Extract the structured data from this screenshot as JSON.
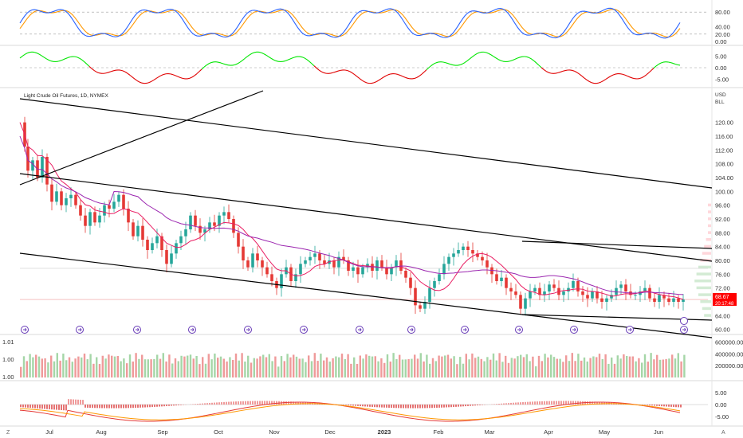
{
  "chart_data": {
    "type": "candlestick",
    "title": "Light Crude Oil Futures, 1D, NYMEX",
    "currency": "USD",
    "unit": "BLL",
    "last_price": "68.67",
    "countdown": "20:17:48",
    "x_labels": [
      "Jul",
      "Aug",
      "Sep",
      "Oct",
      "Nov",
      "Dec",
      "2023",
      "Feb",
      "Mar",
      "Apr",
      "May",
      "Jun"
    ],
    "main_y_ticks": [
      "120.00",
      "116.00",
      "112.00",
      "108.00",
      "104.00",
      "100.00",
      "96.00",
      "92.00",
      "88.00",
      "84.00",
      "80.00",
      "76.00",
      "72.00",
      "68.00",
      "64.00",
      "60.00"
    ],
    "main_ylim": [
      59,
      125
    ],
    "close_series": {
      "x": [
        0,
        6,
        10,
        16,
        22,
        28,
        34,
        40,
        46,
        52,
        58,
        64,
        70,
        76,
        82,
        88,
        94,
        100,
        106,
        112,
        118,
        124,
        130,
        136,
        142,
        148,
        154,
        160,
        166,
        172,
        178,
        184,
        190,
        196,
        202,
        208,
        214,
        220,
        226,
        232,
        238,
        244,
        250,
        256,
        262,
        268,
        274,
        280,
        286,
        292,
        298,
        304,
        310,
        316,
        322,
        328,
        334,
        340,
        346,
        352,
        358,
        364,
        370,
        376,
        382,
        388,
        394,
        400,
        406,
        412,
        418,
        424,
        430,
        436,
        442,
        448,
        454,
        460,
        466,
        472,
        478,
        484,
        490,
        496,
        502,
        508,
        514,
        520,
        526,
        532,
        538,
        544,
        550,
        556,
        562,
        568,
        574,
        580,
        586,
        592,
        598,
        604,
        610,
        616,
        622,
        628,
        634,
        640,
        646,
        652,
        658,
        664,
        670,
        676,
        682,
        688,
        694,
        700,
        706,
        712,
        718,
        724,
        730,
        736,
        742,
        748,
        754,
        760,
        766,
        772,
        778,
        784,
        790,
        796,
        802,
        808,
        814,
        820,
        826,
        832
      ],
      "y": [
        120,
        113,
        106,
        109,
        104,
        110,
        102,
        97,
        100,
        96,
        98,
        99,
        96,
        93,
        90,
        94,
        91,
        93,
        96,
        95,
        97,
        99,
        95,
        91,
        87,
        90,
        86,
        83,
        85,
        87,
        83,
        79,
        82,
        85,
        87,
        89,
        93,
        90,
        88,
        89,
        91,
        90,
        93,
        94,
        92,
        88,
        84,
        80,
        78,
        82,
        80,
        78,
        76,
        74,
        72,
        76,
        78,
        74,
        76,
        79,
        80,
        81,
        82,
        80,
        79,
        80,
        78,
        81,
        80,
        77,
        78,
        76,
        78,
        79,
        77,
        80,
        78,
        76,
        78,
        80,
        77,
        75,
        72,
        67,
        66,
        68,
        72,
        74,
        76,
        79,
        81,
        82,
        83,
        84,
        83,
        82,
        81,
        80,
        78,
        76,
        74,
        75,
        72,
        71,
        70,
        66,
        69,
        71,
        72,
        70,
        71,
        73,
        72,
        70,
        71,
        72,
        74,
        71,
        70,
        69,
        71,
        69,
        68,
        69,
        70,
        72,
        73,
        71,
        70,
        70,
        71,
        72,
        69,
        68,
        70,
        69,
        68,
        69,
        68,
        68.67
      ]
    },
    "volume_ticks": [
      "600000.00",
      "400000.00",
      "200000.00"
    ],
    "volume_left_ticks": [
      "1.01",
      "1.00",
      "1.00"
    ],
    "stoch_ticks": [
      "80.00",
      "40.00",
      "20.00",
      "0.00"
    ],
    "mom_ticks": [
      "5.00",
      "0.00",
      "-5.00"
    ],
    "macd_ticks": [
      "5.00",
      "0.00",
      "-5.00"
    ],
    "indicator_lines": {
      "stoch_upper": 80,
      "stoch_lower": 20,
      "momentum_zero": 0
    },
    "trendlines": "descending channel with parallel lines; horizontal lines near 84 and 63",
    "colors": {
      "up": "#26a69a",
      "up_bar": "#4caf50",
      "down": "#e53935",
      "ma_fast": "#e91e63",
      "ma_slow": "#9c27b0",
      "stoch_k": "#2962ff",
      "stoch_d": "#ff9800",
      "momentum_up": "#00e600",
      "momentum_down": "#e00000",
      "badge": "#ff0000",
      "events": "#673ab7"
    }
  },
  "footer": {
    "left_corner": "Z",
    "right_corner": "A"
  }
}
